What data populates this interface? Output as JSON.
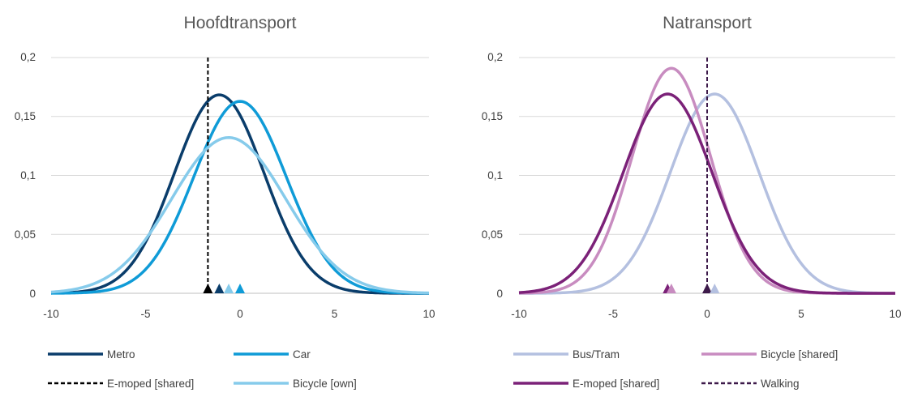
{
  "chart_data": [
    {
      "type": "line",
      "title": "Hoofdtransport",
      "xlim": [
        -10,
        10
      ],
      "ylim": [
        0,
        0.2
      ],
      "x_ticks": [
        "-10",
        "-5",
        "0",
        "5",
        "10"
      ],
      "y_ticks": [
        "0",
        "0,05",
        "0,1",
        "0,15",
        "0,2"
      ],
      "grid": "horizontal",
      "legend_position": "bottom",
      "series": [
        {
          "name": "Metro",
          "distribution": "normal",
          "mean": -1.1,
          "sd": 2.37,
          "color": "#0a3d6b",
          "dash": false
        },
        {
          "name": "Car",
          "distribution": "normal",
          "mean": 0.0,
          "sd": 2.45,
          "color": "#0f9bd7",
          "dash": false
        },
        {
          "name": "E-moped [shared]",
          "vertical_at": -1.7,
          "color": "#000000",
          "dash": true
        },
        {
          "name": "Bicycle [own]",
          "distribution": "normal",
          "mean": -0.6,
          "sd": 3.02,
          "color": "#86cbeb",
          "dash": false
        }
      ],
      "markers": [
        {
          "x": -1.7,
          "color": "#000000"
        },
        {
          "x": -1.1,
          "color": "#0a3d6b"
        },
        {
          "x": -0.6,
          "color": "#86cbeb"
        },
        {
          "x": 0.0,
          "color": "#0f9bd7"
        }
      ]
    },
    {
      "type": "line",
      "title": "Natransport",
      "xlim": [
        -10,
        10
      ],
      "ylim": [
        0,
        0.2
      ],
      "x_ticks": [
        "-10",
        "-5",
        "0",
        "5",
        "10"
      ],
      "y_ticks": [
        "0",
        "0,05",
        "0,1",
        "0,15",
        "0,2"
      ],
      "grid": "horizontal",
      "legend_position": "bottom",
      "series": [
        {
          "name": "Bus/Tram",
          "distribution": "normal",
          "mean": 0.4,
          "sd": 2.36,
          "color": "#b4c0e0",
          "dash": false
        },
        {
          "name": "Bicycle [shared]",
          "distribution": "normal",
          "mean": -1.9,
          "sd": 2.09,
          "color": "#c88cc0",
          "dash": false
        },
        {
          "name": "E-moped [shared]",
          "distribution": "normal",
          "mean": -2.1,
          "sd": 2.36,
          "color": "#7b2178",
          "dash": false
        },
        {
          "name": "Walking",
          "vertical_at": 0.0,
          "color": "#3d1a4a",
          "dash": true
        }
      ],
      "markers": [
        {
          "x": -2.1,
          "color": "#7b2178"
        },
        {
          "x": -1.9,
          "color": "#c88cc0"
        },
        {
          "x": 0.0,
          "color": "#3d1a4a"
        },
        {
          "x": 0.4,
          "color": "#b4c0e0"
        }
      ]
    }
  ]
}
